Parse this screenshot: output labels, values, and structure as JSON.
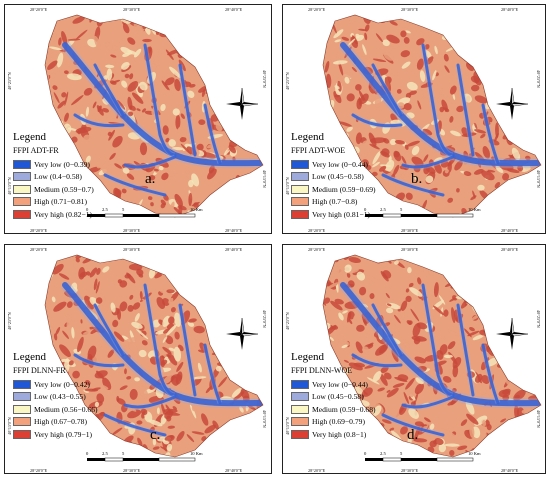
{
  "class_colors": [
    "#1f57d6",
    "#9eaadb",
    "#fbf7c4",
    "#f3a07d",
    "#dc4035"
  ],
  "map_colors": {
    "terrain_high": "#c8493a",
    "terrain_mid": "#e8a07d",
    "terrain_light": "#f4e4b8",
    "streams": "#3a64d4"
  },
  "ticks": {
    "lon": [
      "28°20'0\"E",
      "28°30'0\"E",
      "28°40'0\"E"
    ],
    "lat_top": "40°25'0\"N",
    "lat_bottom": "40°15'0\"N"
  },
  "scale": {
    "labels": [
      "0",
      "2.5",
      "5",
      "10 Km"
    ]
  },
  "compass_icon": "north-arrow-icon",
  "panels": [
    {
      "legend_title": "Legend",
      "model": "FFPI ADT-FR",
      "letter": "a.",
      "classes": [
        "Very low (0−0.39)",
        "Low (0.4−0.58)",
        "Medium (0.59−0.7)",
        "High (0.71−0.81)",
        "Very high (0.82−1)"
      ]
    },
    {
      "legend_title": "Legend",
      "model": "FFPI ADT-WOE",
      "letter": "b.",
      "classes": [
        "Very low (0−0.44)",
        "Low (0.45−0.58)",
        "Medium (0.59−0.69)",
        "High (0.7−0.8)",
        "Very high (0.81−1)"
      ]
    },
    {
      "legend_title": "Legend",
      "model": "FFPI DLNN-FR",
      "letter": "c.",
      "classes": [
        "Very low (0−0.42)",
        "Low (0.43−0.55)",
        "Medium (0.56−0.66)",
        "High (0.67−0.78)",
        "Very high (0.79−1)"
      ]
    },
    {
      "legend_title": "Legend",
      "model": "FFPI DLNN-WOE",
      "letter": "d.",
      "classes": [
        "Very low (0−0.44)",
        "Low (0.45−0.58)",
        "Medium (0.59−0.68)",
        "High (0.69−0.79)",
        "Very high (0.8−1)"
      ]
    }
  ]
}
